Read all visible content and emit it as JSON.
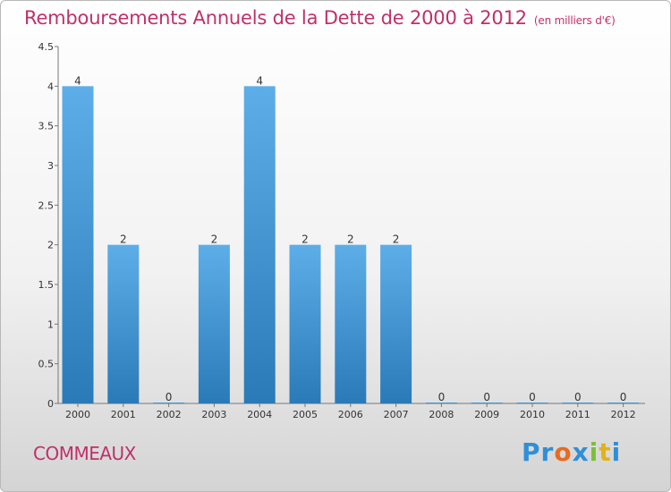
{
  "chart_data": {
    "type": "bar",
    "title": "Remboursements Annuels de la Dette de 2000 à 2012",
    "unit": "(en milliers d'€)",
    "categories": [
      "2000",
      "2001",
      "2002",
      "2003",
      "2004",
      "2005",
      "2006",
      "2007",
      "2008",
      "2009",
      "2010",
      "2011",
      "2012"
    ],
    "values": [
      4,
      2,
      0,
      2,
      4,
      2,
      2,
      2,
      0,
      0,
      0,
      0,
      0
    ],
    "y_ticks": [
      "0",
      "0.5",
      "1",
      "1.5",
      "2",
      "2.5",
      "3",
      "3.5",
      "4",
      "4.5"
    ],
    "ylim": [
      0,
      4.5
    ],
    "grid": false,
    "bar_color_top": "#5daee8",
    "bar_color_bottom": "#2a7ab8"
  },
  "commune": "COMMEAUX",
  "logo": {
    "letters": [
      "P",
      "r",
      "o",
      "x",
      "i",
      "t",
      "i"
    ],
    "colors": [
      "#2f8fd8",
      "#2f8fd8",
      "#e96a1f",
      "#2f8fd8",
      "#7cbf3a",
      "#e2b21a",
      "#2f8fd8"
    ]
  }
}
